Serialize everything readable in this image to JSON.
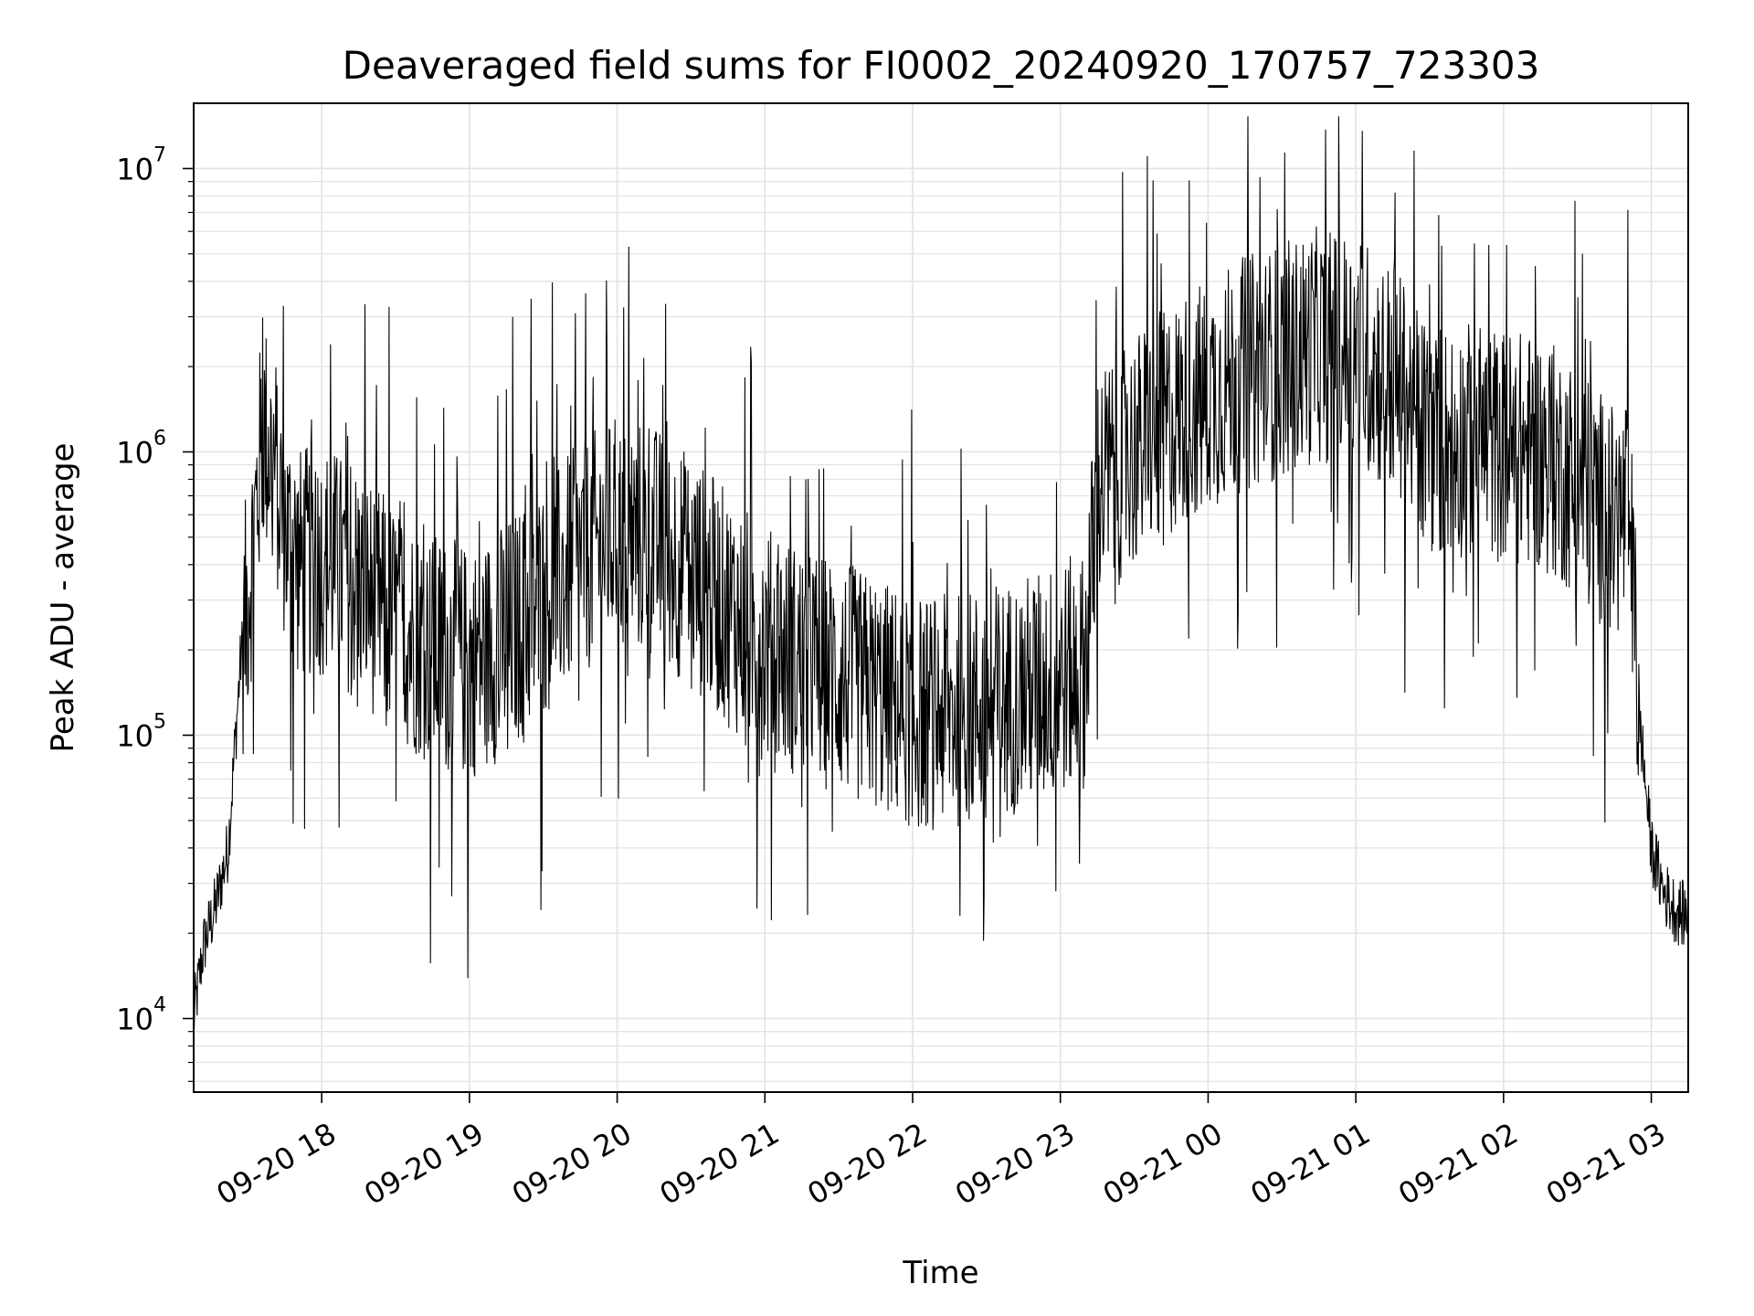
{
  "chart_data": {
    "type": "line",
    "title": "Deaveraged field sums for FI0002_20240920_170757_723303",
    "xlabel": "Time",
    "ylabel": "Peak ADU - average",
    "yscale": "log",
    "ylim": [
      5500,
      17000000
    ],
    "xlim": [
      "09-20 17:08",
      "09-21 03:15"
    ],
    "grid": true,
    "line_color": "#000000",
    "x_ticks": [
      "09-20 18",
      "09-20 19",
      "09-20 20",
      "09-20 21",
      "09-20 22",
      "09-20 23",
      "09-21 00",
      "09-21 01",
      "09-21 02",
      "09-21 03"
    ],
    "y_ticks": [
      {
        "base": "10",
        "exp": "4",
        "value": 10000
      },
      {
        "base": "10",
        "exp": "5",
        "value": 100000
      },
      {
        "base": "10",
        "exp": "6",
        "value": 1000000
      },
      {
        "base": "10",
        "exp": "7",
        "value": 10000000
      }
    ],
    "series": [
      {
        "x": [
          "09-20 17:08",
          "09-20 17:12",
          "09-20 17:17",
          "09-20 17:22",
          "09-20 17:27",
          "09-20 17:32",
          "09-20 17:36",
          "09-20 17:41",
          "09-20 17:46",
          "09-20 17:51",
          "09-20 18:00",
          "09-20 18:15",
          "09-20 18:30",
          "09-20 18:45",
          "09-20 19:00",
          "09-20 19:15",
          "09-20 19:30",
          "09-20 19:45",
          "09-20 20:00",
          "09-20 20:15",
          "09-20 20:30",
          "09-20 20:45",
          "09-20 21:00",
          "09-20 21:15",
          "09-20 21:30",
          "09-20 21:45",
          "09-20 22:00",
          "09-20 22:15",
          "09-20 22:30",
          "09-20 22:45",
          "09-20 23:00",
          "09-20 23:10",
          "09-20 23:15",
          "09-20 23:30",
          "09-20 23:45",
          "09-21 00:00",
          "09-21 00:15",
          "09-21 00:30",
          "09-21 00:45",
          "09-21 01:00",
          "09-21 01:15",
          "09-21 01:30",
          "09-21 01:45",
          "09-21 02:00",
          "09-21 02:15",
          "09-21 02:30",
          "09-21 02:45",
          "09-21 02:51",
          "09-21 02:55",
          "09-21 03:00",
          "09-21 03:05",
          "09-21 03:10",
          "09-21 03:15"
        ],
        "y": [
          10000,
          18000,
          25000,
          40000,
          180000,
          450000,
          1200000,
          900000,
          500000,
          400000,
          420000,
          350000,
          250000,
          200000,
          180000,
          220000,
          300000,
          420000,
          520000,
          480000,
          380000,
          280000,
          210000,
          180000,
          160000,
          140000,
          120000,
          120000,
          130000,
          140000,
          160000,
          170000,
          750000,
          1000000,
          1300000,
          1600000,
          1900000,
          2100000,
          2400000,
          2300000,
          1800000,
          1100000,
          1100000,
          1050000,
          1000000,
          800000,
          550000,
          620000,
          120000,
          40000,
          28000,
          24000,
          23000
        ]
      }
    ]
  }
}
